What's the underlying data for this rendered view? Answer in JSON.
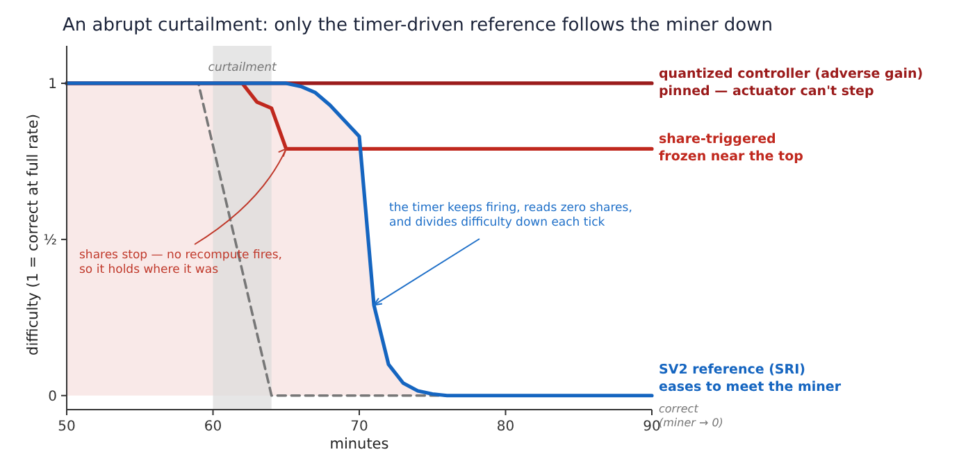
{
  "chart_data": {
    "type": "line",
    "title": "An abrupt curtailment: only the timer-driven reference follows the miner down",
    "xlabel": "minutes",
    "ylabel": "difficulty  (1 = correct at full rate)",
    "xlim": [
      50,
      90
    ],
    "ylim": [
      -0.045,
      1.12
    ],
    "xticks": [
      50,
      60,
      70,
      80,
      90
    ],
    "yticks": [
      0,
      {
        "value": 0.5,
        "label": "½"
      },
      1
    ],
    "grid": false,
    "legend": false,
    "bands": [
      {
        "axis": "x",
        "from": 60,
        "to": 64,
        "label": "curtailment",
        "color": "#dcdcdc"
      }
    ],
    "series": [
      {
        "name": "correct\n(miner → 0)",
        "color": "#777777",
        "line_style": "dashed",
        "x": [
          50,
          59,
          64,
          90
        ],
        "values": [
          1,
          1,
          0,
          0
        ]
      },
      {
        "name": "quantized controller (adverse gain)\npinned — actuator can't step",
        "color": "#9b1b1b",
        "x": [
          50,
          90
        ],
        "values": [
          1,
          1
        ]
      },
      {
        "name": "share-triggered\nfrozen near the top",
        "color": "#c0281e",
        "x": [
          50,
          62,
          63,
          64,
          65,
          90
        ],
        "values": [
          1,
          1,
          0.94,
          0.92,
          0.79,
          0.79
        ]
      },
      {
        "name": "SV2 reference (SRI)\neases to meet the miner",
        "color": "#1565c0",
        "x": [
          50,
          65,
          66,
          67,
          68,
          69,
          70,
          71,
          72,
          73,
          74,
          75,
          76,
          90
        ],
        "values": [
          1,
          1,
          0.99,
          0.97,
          0.93,
          0.88,
          0.83,
          0.29,
          0.1,
          0.04,
          0.015,
          0.005,
          0,
          0
        ],
        "lower": [
          0,
          0,
          0,
          0,
          0,
          0,
          0,
          0,
          0,
          0,
          0,
          0,
          0,
          0
        ],
        "upper": [
          1,
          1,
          0.99,
          0.97,
          0.93,
          0.88,
          0.83,
          0.29,
          0.1,
          0.04,
          0.015,
          0.005,
          0,
          0
        ]
      }
    ],
    "annotations": [
      {
        "text": "shares stop — no recompute fires,\nso it holds where it was",
        "x": 65,
        "y": 0.79
      },
      {
        "text": "the timer keeps firing, reads zero shares,\nand divides difficulty down each tick",
        "x": 71,
        "y": 0.29
      }
    ]
  }
}
